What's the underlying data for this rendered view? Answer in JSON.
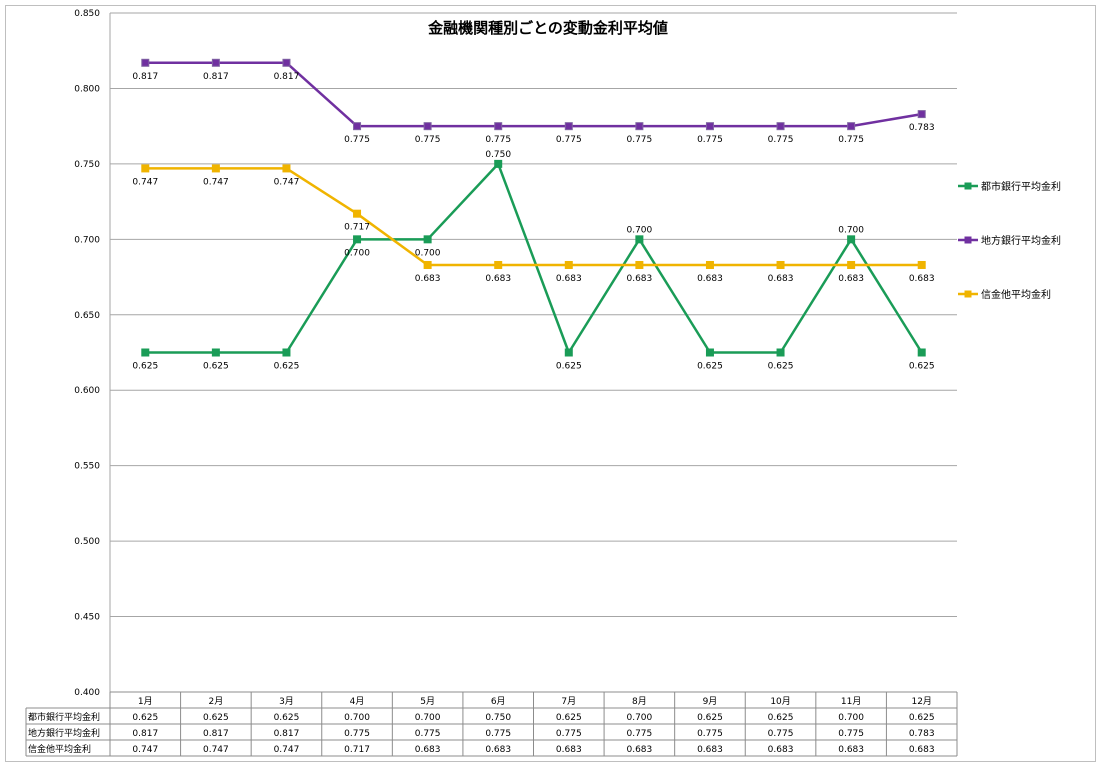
{
  "chart_data": {
    "type": "line",
    "title": "金融機関種別ごとの変動金利平均値",
    "categories": [
      "1月",
      "2月",
      "3月",
      "4月",
      "5月",
      "6月",
      "7月",
      "8月",
      "9月",
      "10月",
      "11月",
      "12月"
    ],
    "ylim": [
      0.4,
      0.85
    ],
    "yticks": [
      "0.400",
      "0.450",
      "0.500",
      "0.550",
      "0.600",
      "0.650",
      "0.700",
      "0.750",
      "0.800",
      "0.850"
    ],
    "grid": true,
    "legend_position": "right",
    "data_table": true,
    "series": [
      {
        "name": "都市銀行平均金利",
        "color": "#1a9c57",
        "marker": "square",
        "values": [
          0.625,
          0.625,
          0.625,
          0.7,
          0.7,
          0.75,
          0.625,
          0.7,
          0.625,
          0.625,
          0.7,
          0.625
        ],
        "labels": [
          "0.625",
          "0.625",
          "0.625",
          "0.700",
          "0.700",
          "0.750",
          "0.625",
          "0.700",
          "0.625",
          "0.625",
          "0.700",
          "0.625"
        ]
      },
      {
        "name": "地方銀行平均金利",
        "color": "#7030a0",
        "marker": "square",
        "values": [
          0.817,
          0.817,
          0.817,
          0.775,
          0.775,
          0.775,
          0.775,
          0.775,
          0.775,
          0.775,
          0.775,
          0.783
        ],
        "labels": [
          "0.817",
          "0.817",
          "0.817",
          "0.775",
          "0.775",
          "0.775",
          "0.775",
          "0.775",
          "0.775",
          "0.775",
          "0.775",
          "0.783"
        ]
      },
      {
        "name": "信金他平均金利",
        "color": "#f0b400",
        "marker": "square",
        "values": [
          0.747,
          0.747,
          0.747,
          0.717,
          0.683,
          0.683,
          0.683,
          0.683,
          0.683,
          0.683,
          0.683,
          0.683
        ],
        "labels": [
          "0.747",
          "0.747",
          "0.747",
          "0.717",
          "0.683",
          "0.683",
          "0.683",
          "0.683",
          "0.683",
          "0.683",
          "0.683",
          "0.683"
        ]
      }
    ]
  }
}
